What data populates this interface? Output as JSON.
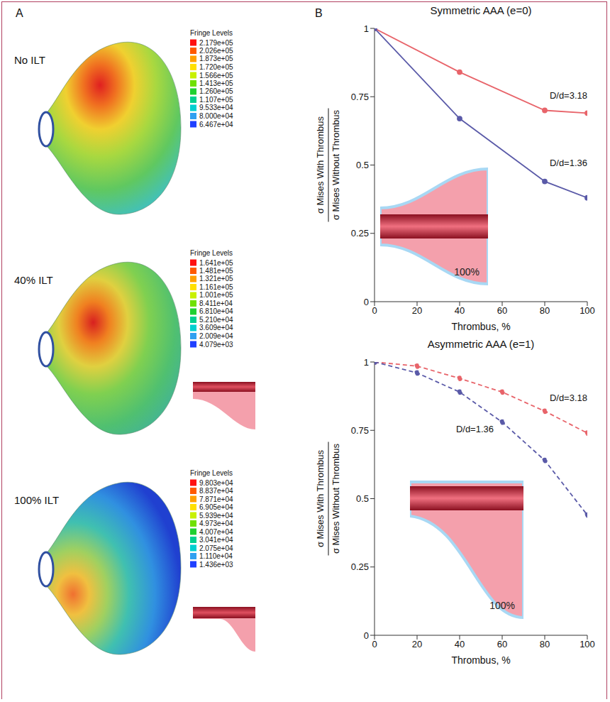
{
  "panel_a": {
    "letter": "A",
    "legend_title": "Fringe Levels",
    "models": [
      {
        "label": "No ILT",
        "levels": [
          {
            "value": 217900,
            "label": "2.179e+05"
          },
          {
            "value": 202600,
            "label": "2.026e+05"
          },
          {
            "value": 187300,
            "label": "1.873e+05"
          },
          {
            "value": 172000,
            "label": "1.720e+05"
          },
          {
            "value": 156600,
            "label": "1.566e+05"
          },
          {
            "value": 141300,
            "label": "1.413e+05"
          },
          {
            "value": 126000,
            "label": "1.260e+05"
          },
          {
            "value": 110700,
            "label": "1.107e+05"
          },
          {
            "value": 95330,
            "label": "9.533e+04"
          },
          {
            "value": 80000,
            "label": "8.000e+04"
          },
          {
            "value": 64670,
            "label": "6.467e+04"
          }
        ]
      },
      {
        "label": "40% ILT",
        "levels": [
          {
            "value": 164100,
            "label": "1.641e+05"
          },
          {
            "value": 148100,
            "label": "1.481e+05"
          },
          {
            "value": 132100,
            "label": "1.321e+05"
          },
          {
            "value": 116100,
            "label": "1.161e+05"
          },
          {
            "value": 100100,
            "label": "1.001e+05"
          },
          {
            "value": 84110,
            "label": "8.411e+04"
          },
          {
            "value": 68100,
            "label": "6.810e+04"
          },
          {
            "value": 52100,
            "label": "5.210e+04"
          },
          {
            "value": 36090,
            "label": "3.609e+04"
          },
          {
            "value": 20090,
            "label": "2.009e+04"
          },
          {
            "value": 4079,
            "label": "4.079e+03"
          }
        ]
      },
      {
        "label": "100% ILT",
        "levels": [
          {
            "value": 98030,
            "label": "9.803e+04"
          },
          {
            "value": 88370,
            "label": "8.837e+04"
          },
          {
            "value": 78710,
            "label": "7.871e+04"
          },
          {
            "value": 69050,
            "label": "6.905e+04"
          },
          {
            "value": 59390,
            "label": "5.939e+04"
          },
          {
            "value": 49730,
            "label": "4.973e+04"
          },
          {
            "value": 40070,
            "label": "4.007e+04"
          },
          {
            "value": 30410,
            "label": "3.041e+04"
          },
          {
            "value": 20750,
            "label": "2.075e+04"
          },
          {
            "value": 11100,
            "label": "1.110e+04"
          },
          {
            "value": 1436,
            "label": "1.436e+03"
          }
        ]
      }
    ]
  },
  "panel_b": {
    "letter": "B"
  },
  "chart_data": [
    {
      "type": "line",
      "title": "Symmetric AAA (e=0)",
      "xlabel": "Thrombus, %",
      "ylabel": {
        "numerator": "σ Mises With Thrombus",
        "denominator": "σ Mises Without Thrombus"
      },
      "inset_label": "100%",
      "x": [
        0,
        40,
        80,
        100
      ],
      "series": [
        {
          "name": "D/d=3.18",
          "color": "#e8646a",
          "values": [
            1,
            0.84,
            0.7,
            0.69
          ],
          "line_style": "solid",
          "marker": "circle"
        },
        {
          "name": "D/d=1.36",
          "color": "#5a5aa8",
          "values": [
            1,
            0.67,
            0.44,
            0.38
          ],
          "line_style": "solid",
          "marker": "circle"
        }
      ],
      "xlim": [
        0,
        100
      ],
      "xticks": [
        0,
        20,
        40,
        60,
        80,
        100
      ],
      "ylim": [
        0,
        1
      ],
      "yticks": [
        0,
        0.25,
        0.5,
        0.75,
        1
      ],
      "grid": false
    },
    {
      "type": "line",
      "title": "Asymmetric AAA (e=1)",
      "xlabel": "Thrombus, %",
      "ylabel": {
        "numerator": "σ Mises With Thrombus",
        "denominator": "σ Mises Without Thrombus"
      },
      "inset_label": "100%",
      "x": [
        0,
        20,
        40,
        60,
        80,
        100
      ],
      "series": [
        {
          "name": "D/d=3.18",
          "color": "#e8646a",
          "values": [
            1,
            0.985,
            0.94,
            0.89,
            0.82,
            0.74
          ],
          "line_style": "dashed",
          "marker": "circle"
        },
        {
          "name": "D/d=1.36",
          "color": "#5a5aa8",
          "values": [
            1,
            0.96,
            0.89,
            0.78,
            0.64,
            0.44
          ],
          "line_style": "dashed",
          "marker": "circle"
        }
      ],
      "xlim": [
        0,
        100
      ],
      "xticks": [
        0,
        20,
        40,
        60,
        80,
        100
      ],
      "ylim": [
        0,
        1
      ],
      "yticks": [
        0,
        0.25,
        0.5,
        0.75,
        1
      ],
      "grid": false
    }
  ]
}
